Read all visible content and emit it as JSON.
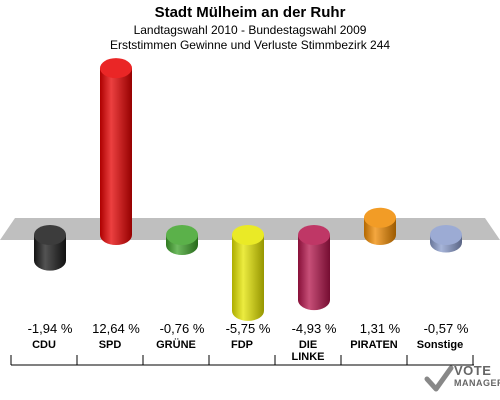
{
  "header": {
    "title": "Stadt Mülheim an der Ruhr",
    "subtitle1": "Landtagswahl 2010 - Bundestagswahl 2009",
    "subtitle2": "Erststimmen Gewinne und Verluste Stimmbezirk 244"
  },
  "chart_data": {
    "type": "bar",
    "title": "Stadt Mülheim an der Ruhr",
    "subtitle": "Landtagswahl 2010 - Bundestagswahl 2009 / Erststimmen Gewinne und Verluste Stimmbezirk 244",
    "categories": [
      "CDU",
      "SPD",
      "GRÜNE",
      "FDP",
      "DIE LINKE",
      "PIRATEN",
      "Sonstige"
    ],
    "values": [
      -1.94,
      12.64,
      -0.76,
      -5.75,
      -4.93,
      1.31,
      -0.57
    ],
    "value_labels": [
      "-1,94 %",
      "12,64 %",
      "-0,76 %",
      "-5,75 %",
      "-4,93 %",
      "1,31 %",
      "-0,57 %"
    ],
    "unit": "%",
    "colors": [
      "#1a1a1a",
      "#e60000",
      "#3ea32a",
      "#e6e600",
      "#b4144b",
      "#f08a00",
      "#8a9ccc"
    ],
    "ylim": [
      -6,
      13
    ],
    "grid": false,
    "legend": "none"
  },
  "labels": {
    "l0": "CDU",
    "l1": "SPD",
    "l2": "GRÜNE",
    "l3": "FDP",
    "l4a": "DIE",
    "l4b": "LINKE",
    "l5": "PIRATEN",
    "l6": "Sonstige"
  },
  "logo": {
    "line1": "VOTE",
    "line2": "MANAGER"
  }
}
